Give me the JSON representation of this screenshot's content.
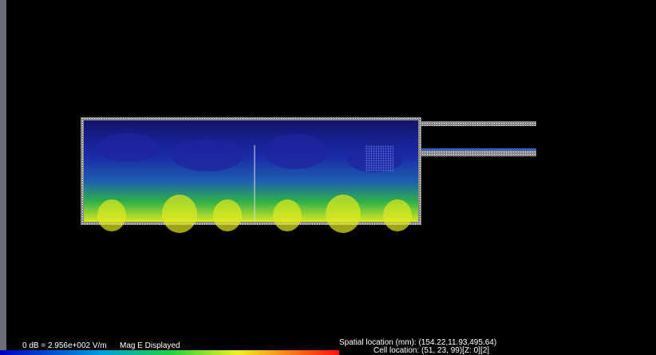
{
  "status": {
    "reference": "0 dB = 2.956e+002 V/m",
    "mode": "Mag E Displayed",
    "spatial": "Spatial location (mm): (154.22,11.93,495.64)",
    "cell": "Cell location: (51, 23, 99)[Z: 0][2]"
  }
}
